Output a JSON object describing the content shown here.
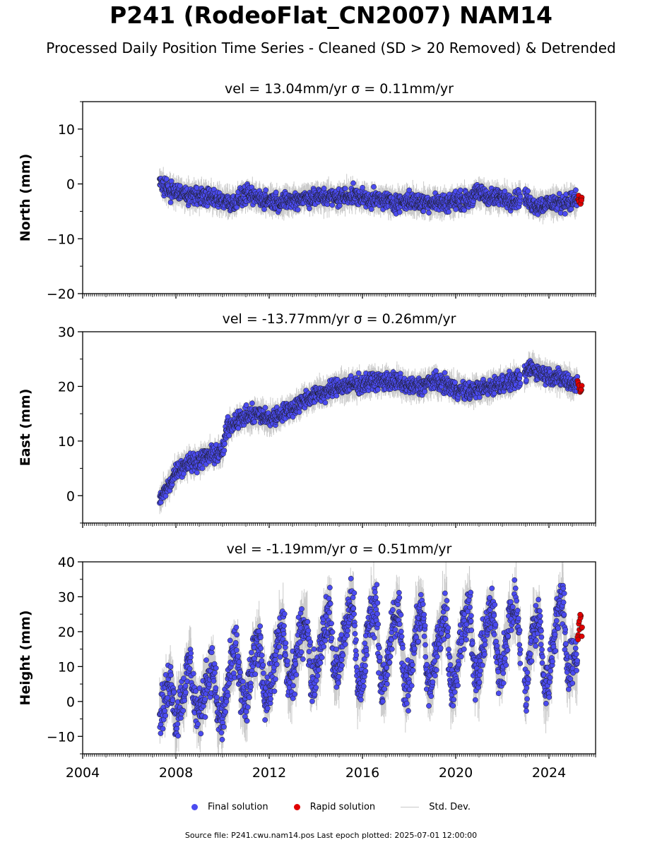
{
  "title": "P241 (RodeoFlat_CN2007) NAM14",
  "subtitle": "Processed Daily Position Time Series - Cleaned (SD > 20 Removed) & Detrended",
  "legend": {
    "final": "Final solution",
    "rapid": "Rapid solution",
    "std": "Std. Dev."
  },
  "footer": "Source file: P241.cwu.nam14.pos  Last epoch plotted: 2025-07-01 12:00:00",
  "colors": {
    "final": "#4b4bf0",
    "rapid": "#e00000",
    "std": "#b4b4b4",
    "edge": "#1a1a1a"
  },
  "chart_data": [
    {
      "type": "scatter",
      "title": "vel = 13.04mm/yr   σ = 0.11mm/yr",
      "ylabel": "North (mm)",
      "xlim": [
        2004,
        2026
      ],
      "ylim": [
        -20,
        15
      ],
      "yticks": [
        -20,
        -10,
        0,
        10
      ],
      "ytick_labels": [
        "−20",
        "−10",
        "0",
        "10"
      ],
      "series": [
        {
          "name": "Final solution",
          "x": [
            2007.3,
            2007.6,
            2008.0,
            2008.5,
            2009.0,
            2009.5,
            2010.0,
            2010.5,
            2011.0,
            2011.5,
            2012.0,
            2012.5,
            2013.0,
            2013.5,
            2014.0,
            2014.5,
            2015.0,
            2015.5,
            2016.0,
            2016.5,
            2017.0,
            2017.5,
            2018.0,
            2018.5,
            2019.0,
            2019.5,
            2020.0,
            2020.5,
            2021.0,
            2021.5,
            2022.0,
            2022.5,
            2022.9,
            2023.2,
            2023.6,
            2024.0,
            2024.5,
            2025.0
          ],
          "y": [
            0.5,
            -1.0,
            -1.5,
            -2.0,
            -2.2,
            -2.5,
            -3.0,
            -3.5,
            -2.0,
            -2.5,
            -3.0,
            -3.2,
            -3.0,
            -2.5,
            -2.5,
            -2.3,
            -2.5,
            -2.0,
            -2.5,
            -2.8,
            -3.0,
            -3.5,
            -3.0,
            -3.5,
            -3.2,
            -3.5,
            -3.0,
            -3.0,
            -1.5,
            -2.5,
            -2.5,
            -3.0,
            -2.0,
            -3.5,
            -4.0,
            -3.5,
            -3.5,
            -3.0
          ]
        },
        {
          "name": "Rapid solution",
          "x": [
            2025.25,
            2025.3,
            2025.35,
            2025.4
          ],
          "y": [
            -2.5,
            -3.0,
            -3.2,
            -2.8
          ]
        }
      ]
    },
    {
      "type": "scatter",
      "title": "vel = -13.77mm/yr   σ = 0.26mm/yr",
      "ylabel": "East (mm)",
      "xlim": [
        2004,
        2026
      ],
      "ylim": [
        -5,
        30
      ],
      "yticks": [
        0,
        10,
        20,
        30
      ],
      "ytick_labels": [
        "0",
        "10",
        "20",
        "30"
      ],
      "series": [
        {
          "name": "Final solution",
          "x": [
            2007.3,
            2007.6,
            2008.0,
            2008.5,
            2009.0,
            2009.5,
            2010.0,
            2010.2,
            2010.5,
            2011.0,
            2011.5,
            2012.0,
            2012.5,
            2013.0,
            2013.5,
            2014.0,
            2014.5,
            2015.0,
            2015.5,
            2016.0,
            2016.5,
            2017.0,
            2017.5,
            2018.0,
            2018.5,
            2019.0,
            2019.5,
            2020.0,
            2020.5,
            2021.0,
            2021.5,
            2022.0,
            2022.5,
            2022.9,
            2023.2,
            2023.6,
            2024.0,
            2024.5,
            2025.0
          ],
          "y": [
            -0.5,
            1.0,
            4.5,
            6.0,
            6.5,
            7.5,
            8.0,
            12.5,
            13.5,
            14.5,
            15.0,
            14.0,
            15.0,
            16.0,
            17.5,
            18.5,
            19.0,
            20.0,
            20.2,
            20.5,
            21.0,
            21.0,
            20.8,
            20.0,
            20.0,
            21.0,
            20.5,
            19.5,
            19.0,
            19.5,
            20.0,
            20.5,
            21.0,
            21.5,
            23.5,
            22.5,
            22.0,
            21.5,
            20.5
          ]
        },
        {
          "name": "Rapid solution",
          "x": [
            2025.25,
            2025.3,
            2025.35,
            2025.4
          ],
          "y": [
            20.5,
            19.8,
            19.2,
            19.8
          ]
        }
      ]
    },
    {
      "type": "scatter",
      "title": "vel = -1.19mm/yr   σ = 0.51mm/yr",
      "ylabel": "Height (mm)",
      "xlim": [
        2004,
        2026
      ],
      "ylim": [
        -15,
        40
      ],
      "yticks": [
        -10,
        0,
        10,
        20,
        30,
        40
      ],
      "ytick_labels": [
        "−10",
        "0",
        "10",
        "20",
        "30",
        "40"
      ],
      "xticks": [
        2004,
        2008,
        2012,
        2016,
        2020,
        2024
      ],
      "xtick_labels": [
        "2004",
        "2008",
        "2012",
        "2016",
        "2020",
        "2024"
      ],
      "series": [
        {
          "name": "Final solution",
          "x": [
            2007.3,
            2007.5,
            2007.8,
            2008.0,
            2008.3,
            2008.6,
            2008.8,
            2009.0,
            2009.3,
            2009.6,
            2009.8,
            2010.0,
            2010.3,
            2010.6,
            2010.8,
            2011.0,
            2011.3,
            2011.6,
            2011.8,
            2012.0,
            2012.3,
            2012.6,
            2012.8,
            2013.0,
            2013.3,
            2013.6,
            2013.8,
            2014.0,
            2014.3,
            2014.6,
            2014.8,
            2015.0,
            2015.3,
            2015.6,
            2015.8,
            2016.0,
            2016.3,
            2016.6,
            2016.8,
            2017.0,
            2017.3,
            2017.6,
            2017.8,
            2018.0,
            2018.3,
            2018.6,
            2018.8,
            2019.0,
            2019.3,
            2019.6,
            2019.8,
            2020.0,
            2020.3,
            2020.6,
            2020.8,
            2021.0,
            2021.3,
            2021.6,
            2021.8,
            2022.0,
            2022.3,
            2022.6,
            2022.8,
            2023.0,
            2023.3,
            2023.6,
            2023.8,
            2024.0,
            2024.3,
            2024.6,
            2024.8,
            2025.0
          ],
          "y": [
            -3,
            0,
            6,
            -5,
            2,
            12,
            0,
            -4,
            6,
            10,
            -4,
            -6,
            8,
            16,
            2,
            -2,
            12,
            18,
            2,
            2,
            14,
            22,
            6,
            6,
            18,
            24,
            6,
            8,
            20,
            26,
            8,
            10,
            22,
            30,
            2,
            6,
            24,
            28,
            4,
            6,
            22,
            26,
            4,
            4,
            22,
            26,
            4,
            6,
            20,
            26,
            4,
            6,
            22,
            28,
            6,
            8,
            22,
            26,
            10,
            10,
            24,
            28,
            12,
            2,
            20,
            24,
            4,
            6,
            24,
            30,
            8,
            12
          ]
        },
        {
          "name": "Rapid solution",
          "x": [
            2025.25,
            2025.3,
            2025.35,
            2025.4
          ],
          "y": [
            19,
            22,
            24,
            20
          ]
        }
      ]
    }
  ]
}
